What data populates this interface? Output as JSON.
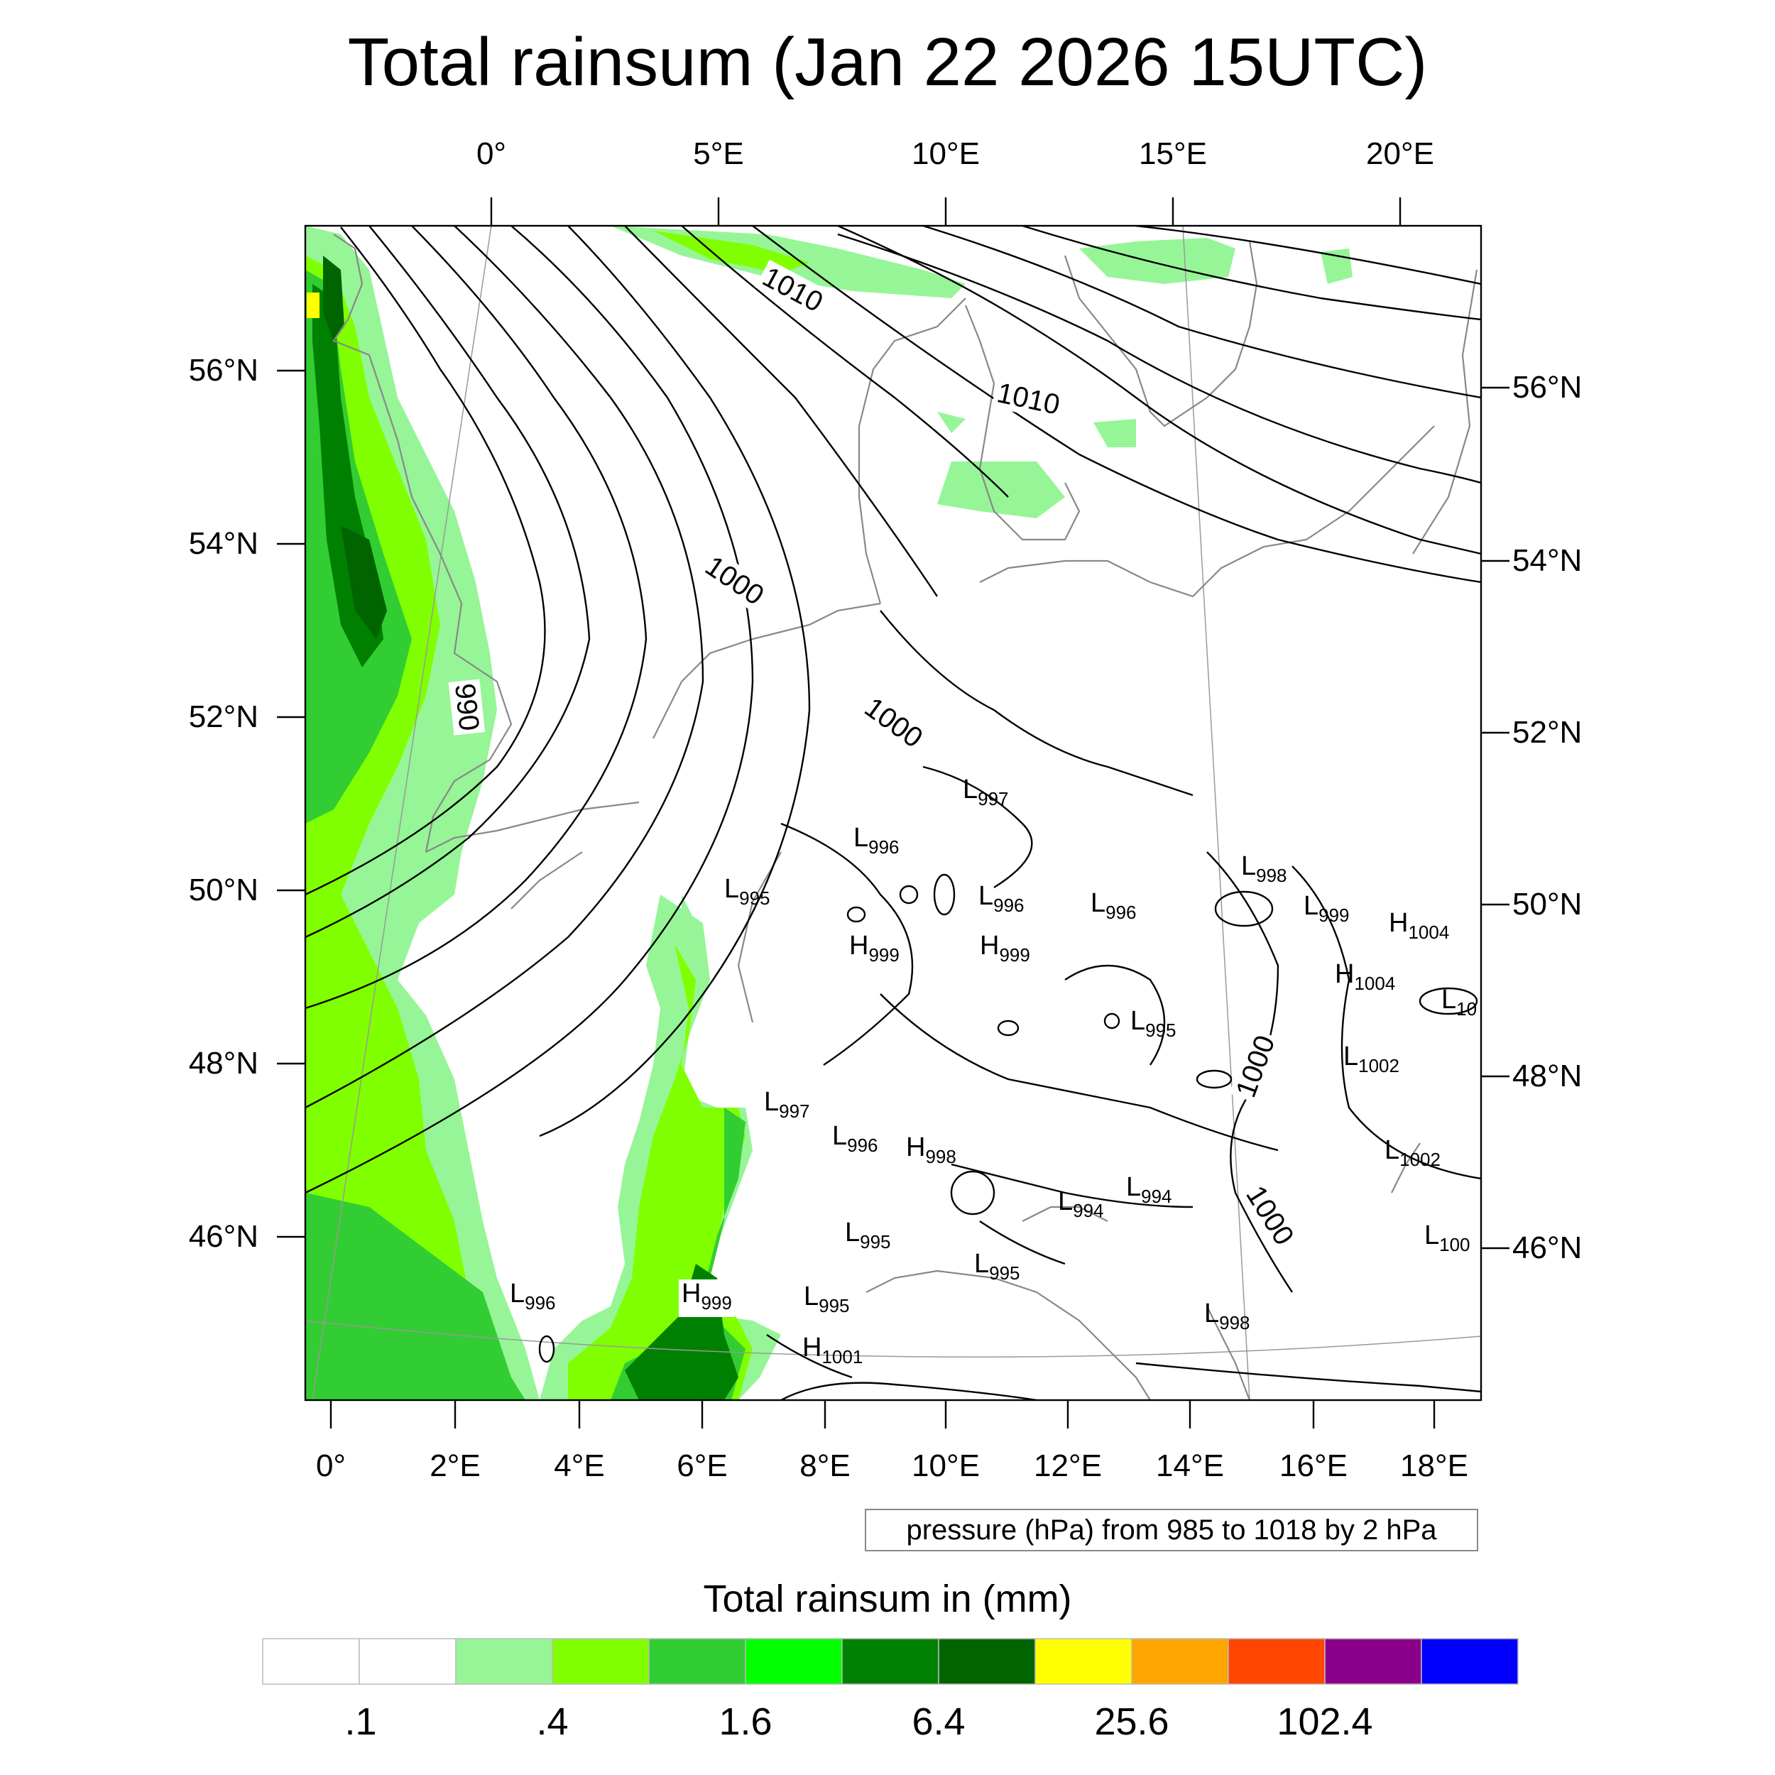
{
  "title": "Total rainsum (Jan 22 2026 15UTC)",
  "top_lon_labels": [
    "0°",
    "5°E",
    "10°E",
    "15°E",
    "20°E"
  ],
  "bottom_lon_labels": [
    "0°",
    "2°E",
    "4°E",
    "6°E",
    "8°E",
    "10°E",
    "12°E",
    "14°E",
    "16°E",
    "18°E"
  ],
  "left_lat_labels": [
    "56°N",
    "54°N",
    "52°N",
    "50°N",
    "48°N",
    "46°N"
  ],
  "right_lat_labels": [
    "56°N",
    "54°N",
    "52°N",
    "50°N",
    "48°N",
    "46°N"
  ],
  "pressure_info": "pressure (hPa) from 985 to 1018 by 2 hPa",
  "colorbar": {
    "title": "Total rainsum in (mm)",
    "colors": [
      "#ffffff",
      "#ffffff",
      "#96f596",
      "#80ff00",
      "#32cd32",
      "#00ff00",
      "#008000",
      "#006400",
      "#ffff00",
      "#ffa500",
      "#ff4500",
      "#8b008b",
      "#0000ff"
    ],
    "labels": [
      ".1",
      ".4",
      "1.6",
      "6.4",
      "25.6",
      "102.4"
    ]
  },
  "contour_labels": [
    "1010",
    "1010",
    "1000",
    "990",
    "1000",
    "1000",
    "1000"
  ],
  "pressure_centers": [
    {
      "type": "L",
      "value": "997"
    },
    {
      "type": "L",
      "value": "996"
    },
    {
      "type": "L",
      "value": "995"
    },
    {
      "type": "L",
      "value": "996"
    },
    {
      "type": "L",
      "value": "996"
    },
    {
      "type": "L",
      "value": "998"
    },
    {
      "type": "H",
      "value": "999"
    },
    {
      "type": "H",
      "value": "999"
    },
    {
      "type": "L",
      "value": "999"
    },
    {
      "type": "H",
      "value": "1004"
    },
    {
      "type": "H",
      "value": "1004"
    },
    {
      "type": "L",
      "value": "10"
    },
    {
      "type": "L",
      "value": "995"
    },
    {
      "type": "L",
      "value": "1002"
    },
    {
      "type": "L",
      "value": "997"
    },
    {
      "type": "L",
      "value": "996"
    },
    {
      "type": "H",
      "value": "998"
    },
    {
      "type": "L",
      "value": "1002"
    },
    {
      "type": "L",
      "value": "994"
    },
    {
      "type": "L",
      "value": "994"
    },
    {
      "type": "L",
      "value": "995"
    },
    {
      "type": "L",
      "value": "100"
    },
    {
      "type": "L",
      "value": "995"
    },
    {
      "type": "L",
      "value": "996"
    },
    {
      "type": "H",
      "value": "999"
    },
    {
      "type": "L",
      "value": "995"
    },
    {
      "type": "L",
      "value": "998"
    },
    {
      "type": "H",
      "value": "1001"
    }
  ]
}
